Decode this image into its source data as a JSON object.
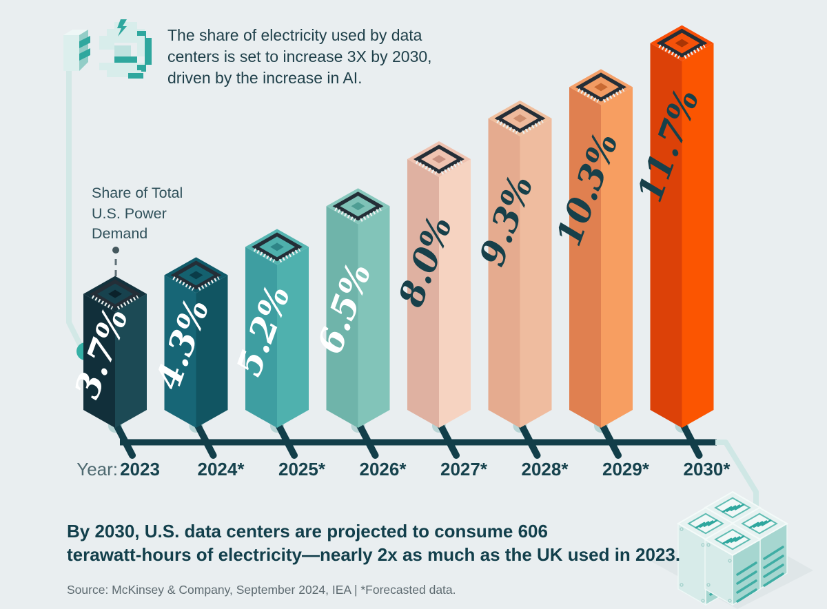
{
  "header": {
    "lines": [
      "The share of electricity used by data",
      "centers is set to increase 3X by 2030,",
      "driven by the increase in AI."
    ]
  },
  "annotation": {
    "lines": [
      "Share of Total",
      "U.S. Power",
      "Demand"
    ]
  },
  "chart_data": {
    "type": "bar",
    "title": "The share of electricity used by data centers is set to increase 3X by 2030, driven by the increase in AI.",
    "annotation": "Share of Total U.S. Power Demand",
    "x_prefix": "Year:",
    "categories": [
      "2023",
      "2024*",
      "2025*",
      "2026*",
      "2027*",
      "2028*",
      "2029*",
      "2030*"
    ],
    "values": [
      3.7,
      4.3,
      5.2,
      6.5,
      8.0,
      9.3,
      10.3,
      11.7
    ],
    "labels": [
      "3.7%",
      "4.3%",
      "5.2%",
      "6.5%",
      "8.0%",
      "9.3%",
      "10.3%",
      "11.7%"
    ],
    "unit": "%",
    "ylim": [
      0,
      12
    ],
    "grid": false,
    "legend": "none",
    "footnote": "*Forecasted data",
    "axis_color": "#123E49",
    "bar_colors": [
      {
        "front": "#112F3A",
        "side": "#1C4A55",
        "top": "#13323D",
        "chip": "#17424E",
        "core": "#0B222B",
        "label": "#FFFFFF"
      },
      {
        "front": "#176676",
        "side": "#115562",
        "top": "#0F5A69",
        "chip": "#14616F",
        "core": "#0A3C48",
        "label": "#FFFFFF"
      },
      {
        "front": "#3E9EA1",
        "side": "#4FB1AE",
        "top": "#55B5B1",
        "chip": "#4FB0AD",
        "core": "#2E8487",
        "label": "#FFFFFF"
      },
      {
        "front": "#6FB4AA",
        "side": "#82C4B9",
        "top": "#88C8BD",
        "chip": "#7FC2B7",
        "core": "#4E9D93",
        "label": "#FFFFFF"
      },
      {
        "front": "#DFB1A1",
        "side": "#F6D3C1",
        "top": "#EFC3B1",
        "chip": "#EFC3B1",
        "core": "#C89282",
        "label": "#17404A"
      },
      {
        "front": "#E5AB8F",
        "side": "#EFBC9F",
        "top": "#F0BF9E",
        "chip": "#EEBA9C",
        "core": "#CE8F6F",
        "label": "#17404A"
      },
      {
        "front": "#E08050",
        "side": "#F79E61",
        "top": "#F49F68",
        "chip": "#F29B63",
        "core": "#C96A33",
        "label": "#17404A"
      },
      {
        "front": "#DC4108",
        "side": "#FB5501",
        "top": "#F94F08",
        "chip": "#F5520A",
        "core": "#A93505",
        "label": "#17404A"
      }
    ]
  },
  "statement": {
    "lines": [
      "By 2030, U.S. data centers are projected to consume 606",
      "terawatt-hours of electricity—nearly 2x as much as the UK used in 2023."
    ]
  },
  "source": {
    "text": "Source: McKinsey & Company, September 2024, IEA | *Forecasted data."
  },
  "icons": {
    "power_plug": "pixel-art isometric plug and socket with lightning bolt",
    "chip": "microchip on top of each bar",
    "servers": "isometric server racks cluster"
  },
  "colors": {
    "background": "#E9EEF0",
    "accent_teal": "#35B0A5",
    "cable_light": "#D2E8E6",
    "text_dark": "#1E3F49"
  }
}
